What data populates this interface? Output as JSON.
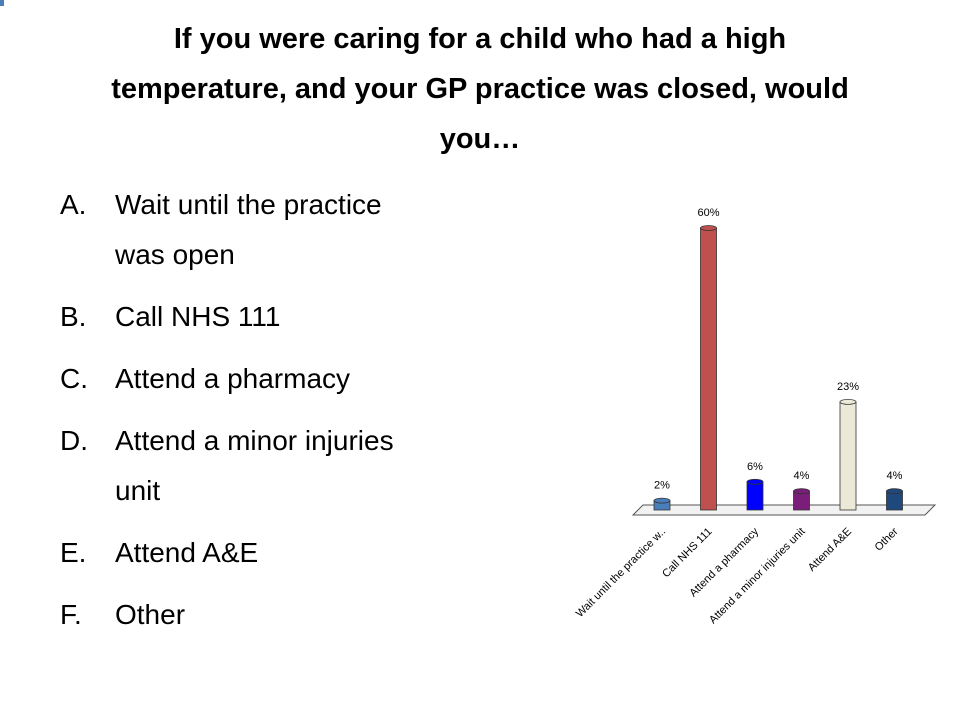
{
  "slide": {
    "title": "If you were caring for a child who had a high temperature, and your GP practice was closed, would you…",
    "options": [
      {
        "letter": "A.",
        "text": "Wait until the practice was open"
      },
      {
        "letter": "B.",
        "text": "Call NHS 111"
      },
      {
        "letter": "C.",
        "text": "Attend a pharmacy"
      },
      {
        "letter": "D.",
        "text": "Attend a minor injuries unit"
      },
      {
        "letter": "E.",
        "text": "Attend A&E"
      },
      {
        "letter": "F.",
        "text": "Other"
      }
    ]
  },
  "chart_data": {
    "type": "bar",
    "categories": [
      "Wait until the practice w..",
      "Call NHS 111",
      "Attend a pharmacy",
      "Attend a minor injuries unit",
      "Attend A&E",
      "Other"
    ],
    "values": [
      2,
      60,
      6,
      4,
      23,
      4
    ],
    "value_labels": [
      "2%",
      "60%",
      "6%",
      "4%",
      "23%",
      "4%"
    ],
    "colors": [
      "#4a7ebb",
      "#c0504d",
      "#0000ff",
      "#7b1e7a",
      "#ece9d8",
      "#1f497d"
    ]
  }
}
